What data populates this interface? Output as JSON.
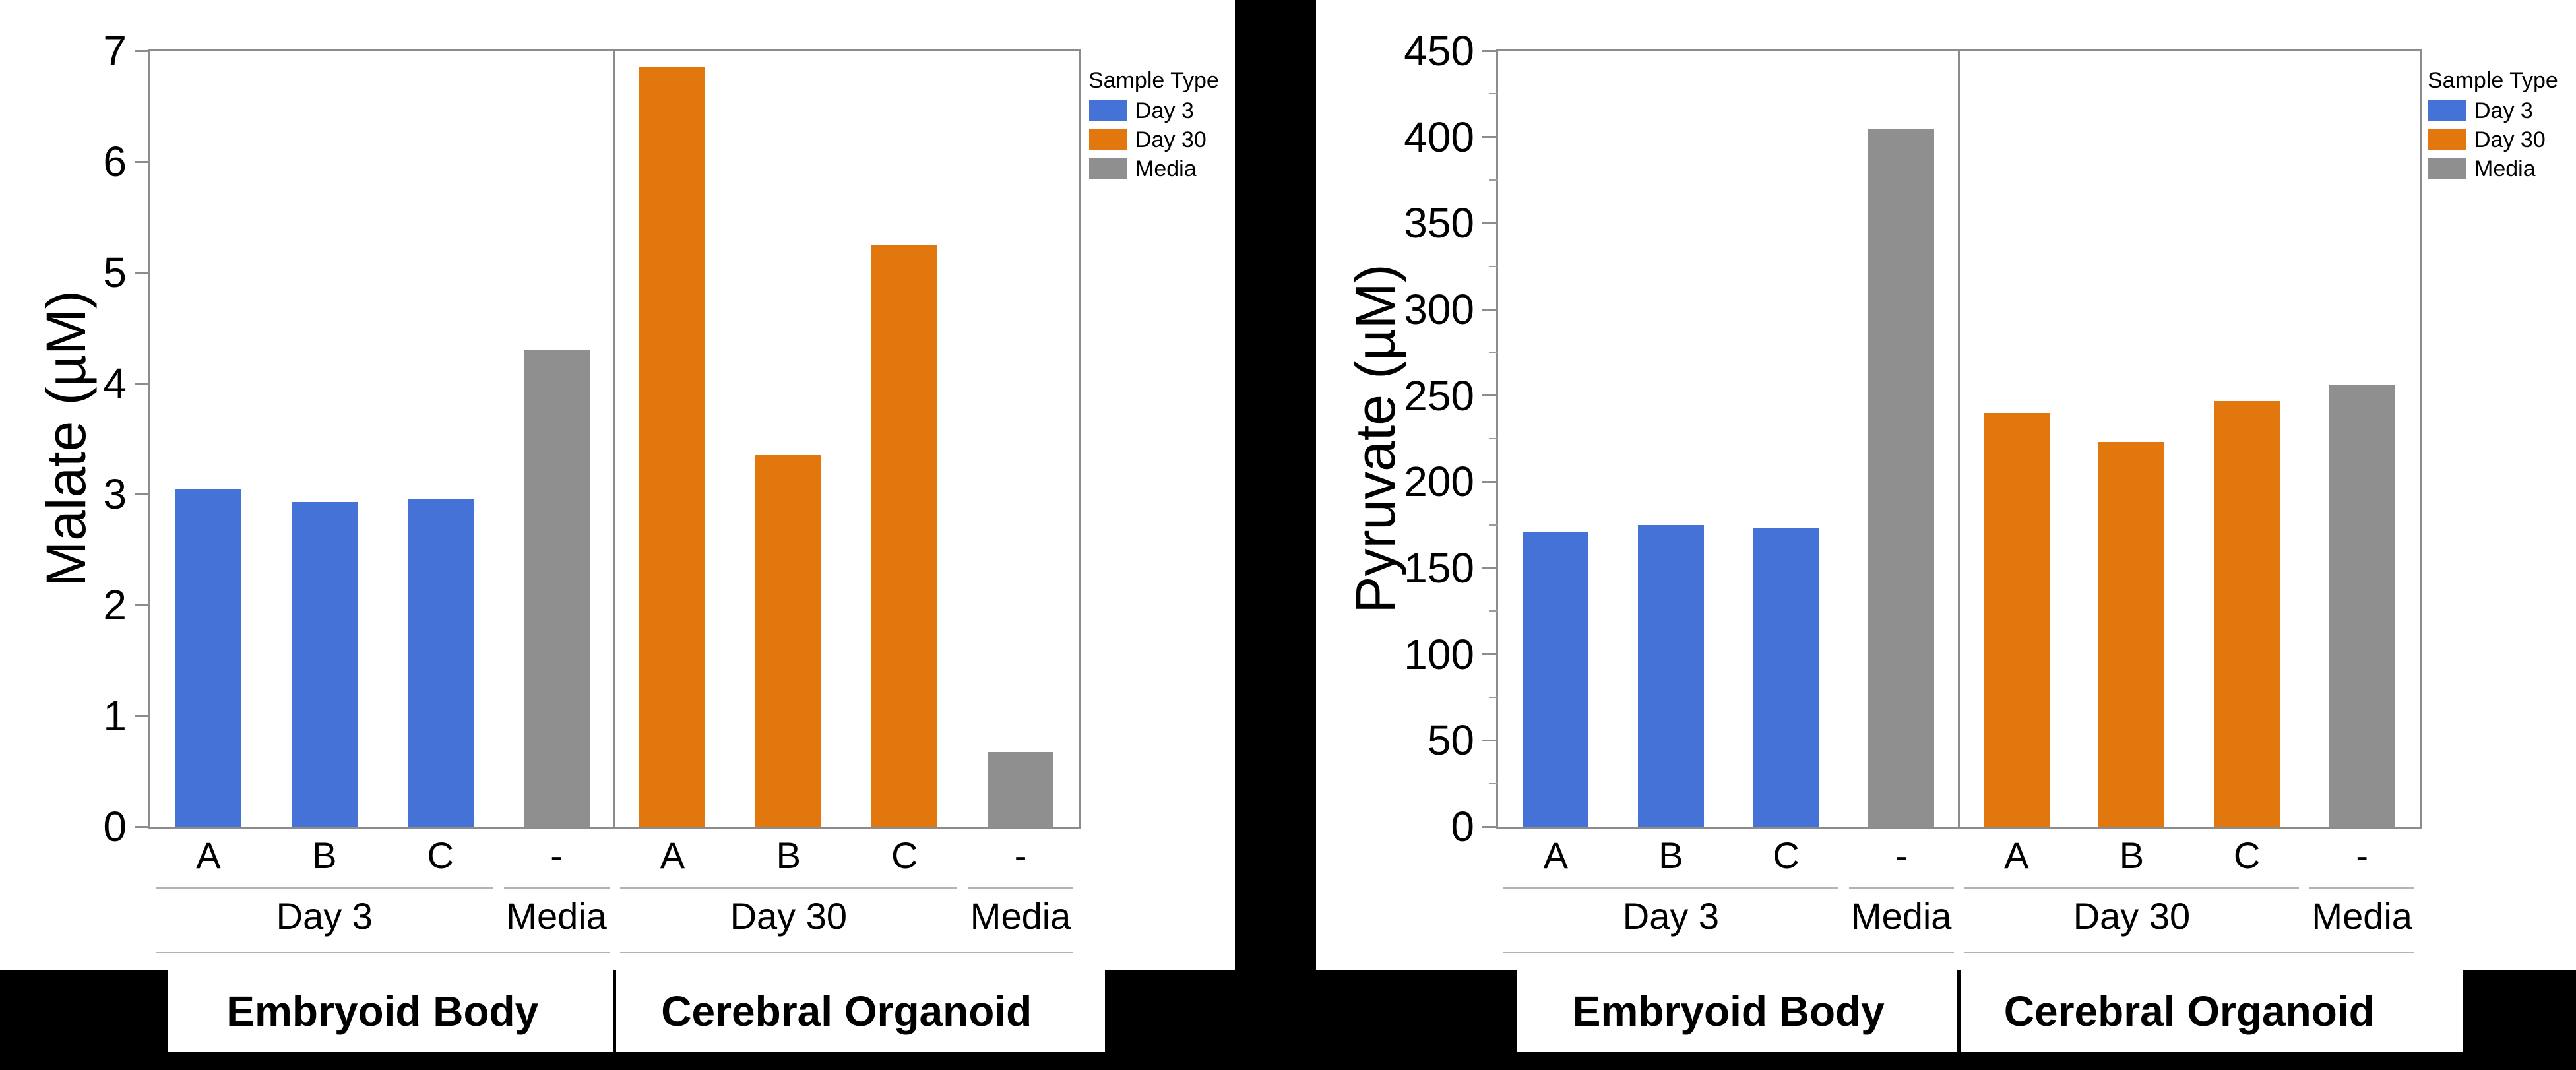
{
  "series_colors": {
    "Day 3": "#4472D6",
    "Day 30": "#E2770D",
    "Media": "#8F8F8F"
  },
  "legend": {
    "title": "Sample Type",
    "position": "right",
    "entries": [
      {
        "label": "Day 3",
        "color": "#4472D6"
      },
      {
        "label": "Day 30",
        "color": "#E2770D"
      },
      {
        "label": "Media",
        "color": "#8F8F8F"
      }
    ]
  },
  "chart_data": [
    {
      "type": "bar",
      "title": "",
      "xlabel": "",
      "ylabel": "Malate (µM)",
      "ylim": [
        0,
        7
      ],
      "ytick_step": 1,
      "yminor_step": null,
      "yticks": [
        0,
        1,
        2,
        3,
        4,
        5,
        6,
        7
      ],
      "grid": false,
      "slots": [
        {
          "category": "A",
          "series": "Day 3",
          "value": 3.05
        },
        {
          "category": "B",
          "series": "Day 3",
          "value": 2.93
        },
        {
          "category": "C",
          "series": "Day 3",
          "value": 2.95
        },
        {
          "category": "-",
          "series": "Media",
          "value": 4.3
        },
        {
          "category": "A",
          "series": "Day 30",
          "value": 6.85
        },
        {
          "category": "B",
          "series": "Day 30",
          "value": 3.35
        },
        {
          "category": "C",
          "series": "Day 30",
          "value": 5.25
        },
        {
          "category": "-",
          "series": "Media",
          "value": 0.67
        }
      ],
      "group_brackets": [
        {
          "label": "Day 3",
          "slots": [
            0,
            3
          ]
        },
        {
          "label": "Media",
          "slots": [
            3,
            4
          ]
        },
        {
          "label": "Day 30",
          "slots": [
            4,
            7
          ]
        },
        {
          "label": "Media",
          "slots": [
            7,
            8
          ]
        }
      ],
      "super_brackets": [
        {
          "label": "Embryoid Body",
          "slots": [
            0,
            4
          ]
        },
        {
          "label": "Cerebral Organoid",
          "slots": [
            4,
            8
          ]
        }
      ]
    },
    {
      "type": "bar",
      "title": "",
      "xlabel": "",
      "ylabel": "Pyruvate (µM)",
      "ylim": [
        0,
        450
      ],
      "ytick_step": 50,
      "yminor_step": 25,
      "yticks": [
        0,
        50,
        100,
        150,
        200,
        250,
        300,
        350,
        400,
        450
      ],
      "grid": false,
      "slots": [
        {
          "category": "A",
          "series": "Day 3",
          "value": 171
        },
        {
          "category": "B",
          "series": "Day 3",
          "value": 175
        },
        {
          "category": "C",
          "series": "Day 3",
          "value": 173
        },
        {
          "category": "-",
          "series": "Media",
          "value": 405
        },
        {
          "category": "A",
          "series": "Day 30",
          "value": 240
        },
        {
          "category": "B",
          "series": "Day 30",
          "value": 223
        },
        {
          "category": "C",
          "series": "Day 30",
          "value": 247
        },
        {
          "category": "-",
          "series": "Media",
          "value": 256
        }
      ],
      "group_brackets": [
        {
          "label": "Day 3",
          "slots": [
            0,
            3
          ]
        },
        {
          "label": "Media",
          "slots": [
            3,
            4
          ]
        },
        {
          "label": "Day 30",
          "slots": [
            4,
            7
          ]
        },
        {
          "label": "Media",
          "slots": [
            7,
            8
          ]
        }
      ],
      "super_brackets": [
        {
          "label": "Embryoid Body",
          "slots": [
            0,
            4
          ]
        },
        {
          "label": "Cerebral Organoid",
          "slots": [
            4,
            8
          ]
        }
      ]
    }
  ]
}
